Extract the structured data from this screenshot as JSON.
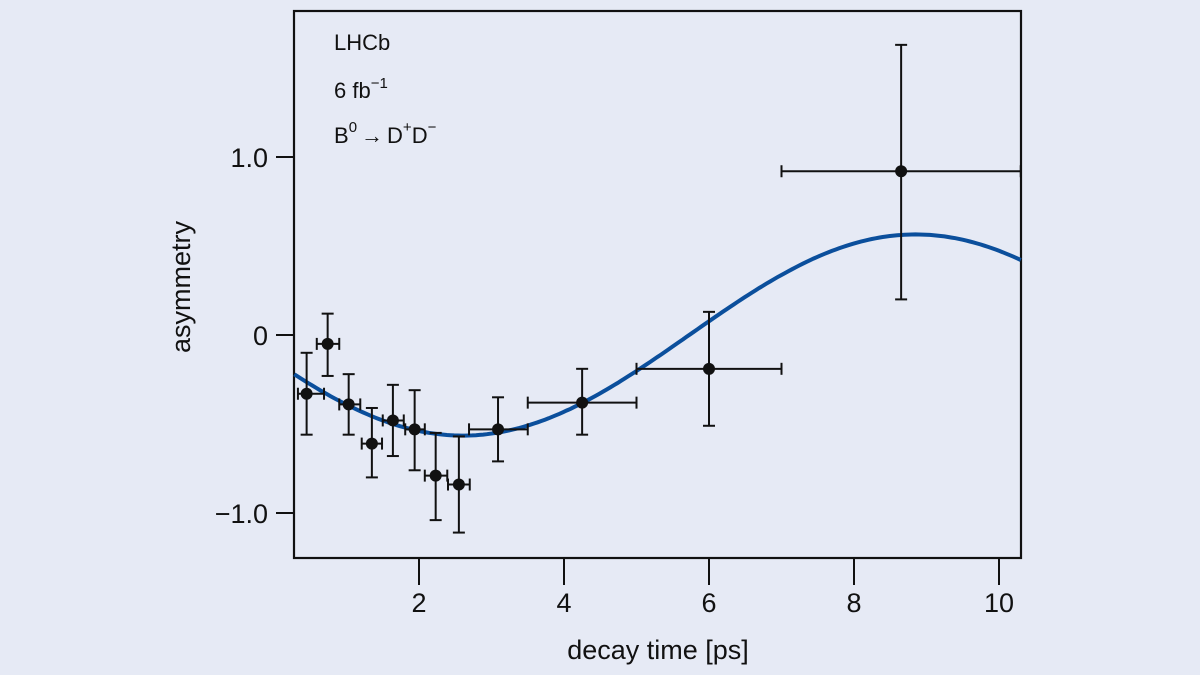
{
  "chart_data": {
    "type": "scatter",
    "title": "",
    "xlabel": "decay time [ps]",
    "ylabel": "asymmetry",
    "xlim": [
      0.28,
      10.3
    ],
    "ylim": [
      -1.26,
      1.82
    ],
    "xticks": [
      2,
      4,
      6,
      8,
      10
    ],
    "xtick_labels": [
      "2",
      "4",
      "6",
      "8",
      "10"
    ],
    "yticks": [
      1.0,
      0,
      -1.0
    ],
    "ytick_labels": [
      "1.0",
      "0",
      "−1.0"
    ],
    "grid": false,
    "annotations": {
      "experiment": "LHCb",
      "luminosity": "6 fb",
      "luminosity_sup": "−1",
      "decay_B": "B",
      "decay_B_sup": "0",
      "decay_arrow": "→",
      "decay_D1": "D",
      "decay_D1_sup": "+",
      "decay_D2": "D",
      "decay_D2_sup": "−"
    },
    "series": [
      {
        "name": "data",
        "kind": "errorbar",
        "color": "#111111",
        "points": [
          {
            "x": 0.45,
            "y": -0.33,
            "xlo": 0.33,
            "xhi": 0.69,
            "ylo": -0.56,
            "yhi": -0.1
          },
          {
            "x": 0.74,
            "y": -0.05,
            "xlo": 0.59,
            "xhi": 0.9,
            "ylo": -0.23,
            "yhi": 0.12
          },
          {
            "x": 1.03,
            "y": -0.39,
            "xlo": 0.9,
            "xhi": 1.19,
            "ylo": -0.56,
            "yhi": -0.22
          },
          {
            "x": 1.35,
            "y": -0.61,
            "xlo": 1.21,
            "xhi": 1.49,
            "ylo": -0.8,
            "yhi": -0.41
          },
          {
            "x": 1.64,
            "y": -0.48,
            "xlo": 1.5,
            "xhi": 1.79,
            "ylo": -0.68,
            "yhi": -0.28
          },
          {
            "x": 1.94,
            "y": -0.53,
            "xlo": 1.81,
            "xhi": 2.08,
            "ylo": -0.76,
            "yhi": -0.31
          },
          {
            "x": 2.23,
            "y": -0.79,
            "xlo": 2.08,
            "xhi": 2.39,
            "ylo": -1.04,
            "yhi": -0.55
          },
          {
            "x": 2.55,
            "y": -0.84,
            "xlo": 2.4,
            "xhi": 2.7,
            "ylo": -1.11,
            "yhi": -0.57
          },
          {
            "x": 3.09,
            "y": -0.53,
            "xlo": 2.69,
            "xhi": 3.5,
            "ylo": -0.71,
            "yhi": -0.35
          },
          {
            "x": 4.25,
            "y": -0.38,
            "xlo": 3.5,
            "xhi": 5.0,
            "ylo": -0.56,
            "yhi": -0.19
          },
          {
            "x": 6.0,
            "y": -0.19,
            "xlo": 5.0,
            "xhi": 7.0,
            "ylo": -0.51,
            "yhi": 0.13
          },
          {
            "x": 8.65,
            "y": 0.92,
            "xlo": 7.0,
            "xhi": 10.3,
            "ylo": 0.2,
            "yhi": 1.63
          }
        ]
      },
      {
        "name": "fit",
        "kind": "line",
        "color": "#0b4f9c",
        "model": {
          "amplitude": 0.565,
          "omega": 0.503,
          "t_peak": 8.85
        },
        "x": [
          0.28,
          1.0,
          2.0,
          2.6,
          3.0,
          4.0,
          5.0,
          6.0,
          7.0,
          8.0,
          8.85,
          9.5,
          10.3
        ],
        "y": [
          -0.22,
          -0.39,
          -0.53,
          -0.565,
          -0.56,
          -0.45,
          -0.24,
          0.02,
          0.26,
          0.47,
          0.565,
          0.55,
          0.42
        ]
      }
    ]
  }
}
